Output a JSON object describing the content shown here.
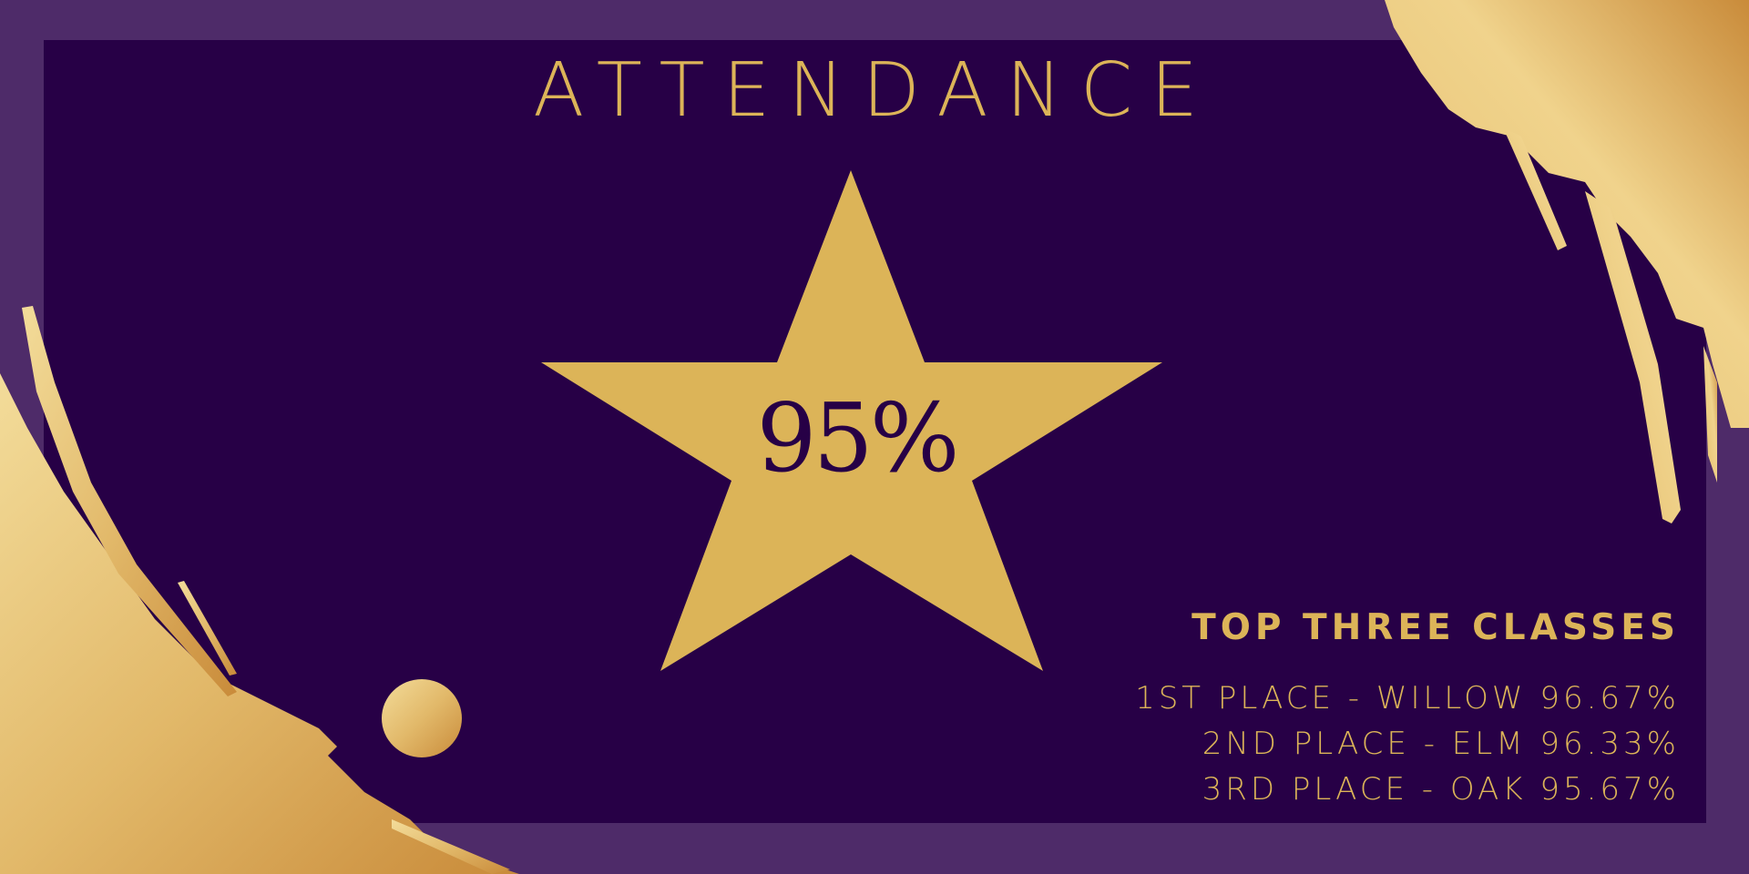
{
  "title": "ATTENDANCE",
  "overall_attendance": "95%",
  "top_classes": {
    "heading": "TOP THREE CLASSES",
    "items": [
      "1ST PLACE - WILLOW 96.67%",
      "2ND PLACE - ELM 96.33%",
      "3RD PLACE - OAK 95.67%"
    ]
  },
  "colors": {
    "background": "#4e2b69",
    "panel": "#270046",
    "gold": "#dcb458"
  },
  "icons": [
    "star-shape",
    "gold-brush-strokes",
    "gold-dot"
  ]
}
